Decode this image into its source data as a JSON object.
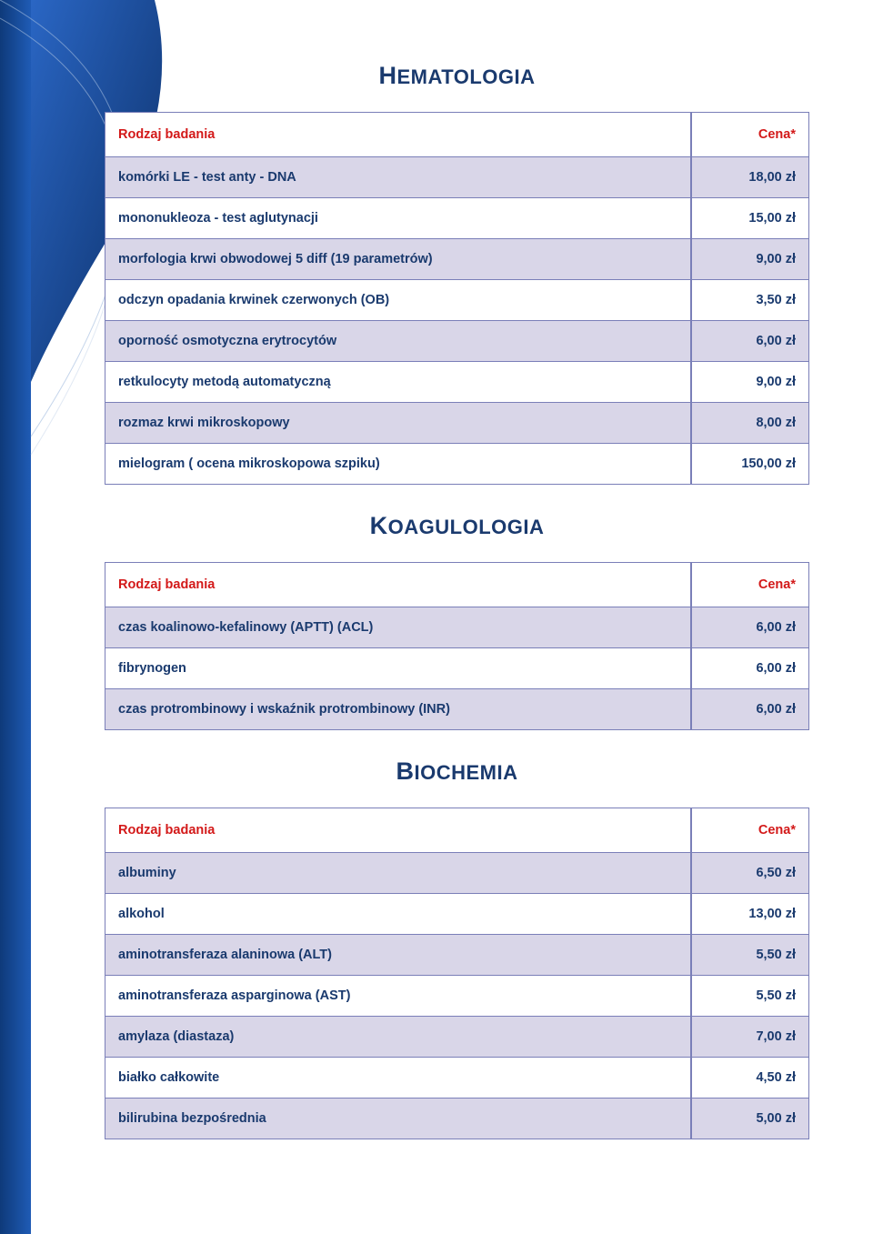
{
  "page": {
    "bg_color": "#ffffff",
    "accent_navy": "#1a3a6e",
    "accent_red": "#d31919",
    "row_odd_bg": "#d9d6e8",
    "row_even_bg": "#ffffff",
    "cell_border": "#7a7fb8",
    "font_family": "Verdana",
    "title_fontsize_pt": 18,
    "body_fontsize_pt": 11
  },
  "sections": [
    {
      "title_cap": "H",
      "title_rest": "EMATOLOGIA",
      "header_name": "Rodzaj badania",
      "header_price": "Cena*",
      "rows": [
        {
          "name": "komórki LE - test anty - DNA",
          "price": "18,00 zł"
        },
        {
          "name": "mononukleoza - test aglutynacji",
          "price": "15,00 zł"
        },
        {
          "name": "morfologia krwi obwodowej  5 diff (19 parametrów)",
          "price": "9,00 zł"
        },
        {
          "name": "odczyn opadania krwinek czerwonych (OB)",
          "price": "3,50 zł"
        },
        {
          "name": "oporność osmotyczna erytrocytów",
          "price": "6,00 zł"
        },
        {
          "name": "retkulocyty metodą automatyczną",
          "price": "9,00 zł"
        },
        {
          "name": "rozmaz krwi mikroskopowy",
          "price": "8,00 zł"
        },
        {
          "name": "mielogram ( ocena mikroskopowa szpiku)",
          "price": "150,00 zł"
        }
      ]
    },
    {
      "title_cap": "K",
      "title_rest": "OAGULOLOGIA",
      "header_name": "Rodzaj badania",
      "header_price": "Cena*",
      "rows": [
        {
          "name": "czas koalinowo-kefalinowy (APTT) (ACL)",
          "price": "6,00 zł"
        },
        {
          "name": "fibrynogen",
          "price": "6,00 zł"
        },
        {
          "name": "czas protrombinowy i wskaźnik protrombinowy (INR)",
          "price": "6,00 zł"
        }
      ]
    },
    {
      "title_cap": "B",
      "title_rest": "IOCHEMIA",
      "header_name": "Rodzaj badania",
      "header_price": "Cena*",
      "rows": [
        {
          "name": "albuminy",
          "price": "6,50 zł"
        },
        {
          "name": "alkohol",
          "price": "13,00 zł"
        },
        {
          "name": "aminotransferaza alaninowa (ALT)",
          "price": "5,50 zł"
        },
        {
          "name": "aminotransferaza asparginowa (AST)",
          "price": "5,50 zł"
        },
        {
          "name": "amylaza (diastaza)",
          "price": "7,00 zł"
        },
        {
          "name": "białko całkowite",
          "price": "4,50 zł"
        },
        {
          "name": "bilirubina bezpośrednia",
          "price": "5,00 zł"
        }
      ]
    }
  ],
  "deco": {
    "sidebar_blue_dark": "#0e3a7a",
    "sidebar_blue_mid": "#1f5bb5",
    "sidebar_blue_light": "#8fb6e8",
    "arc_stroke": "#9aaed0"
  }
}
